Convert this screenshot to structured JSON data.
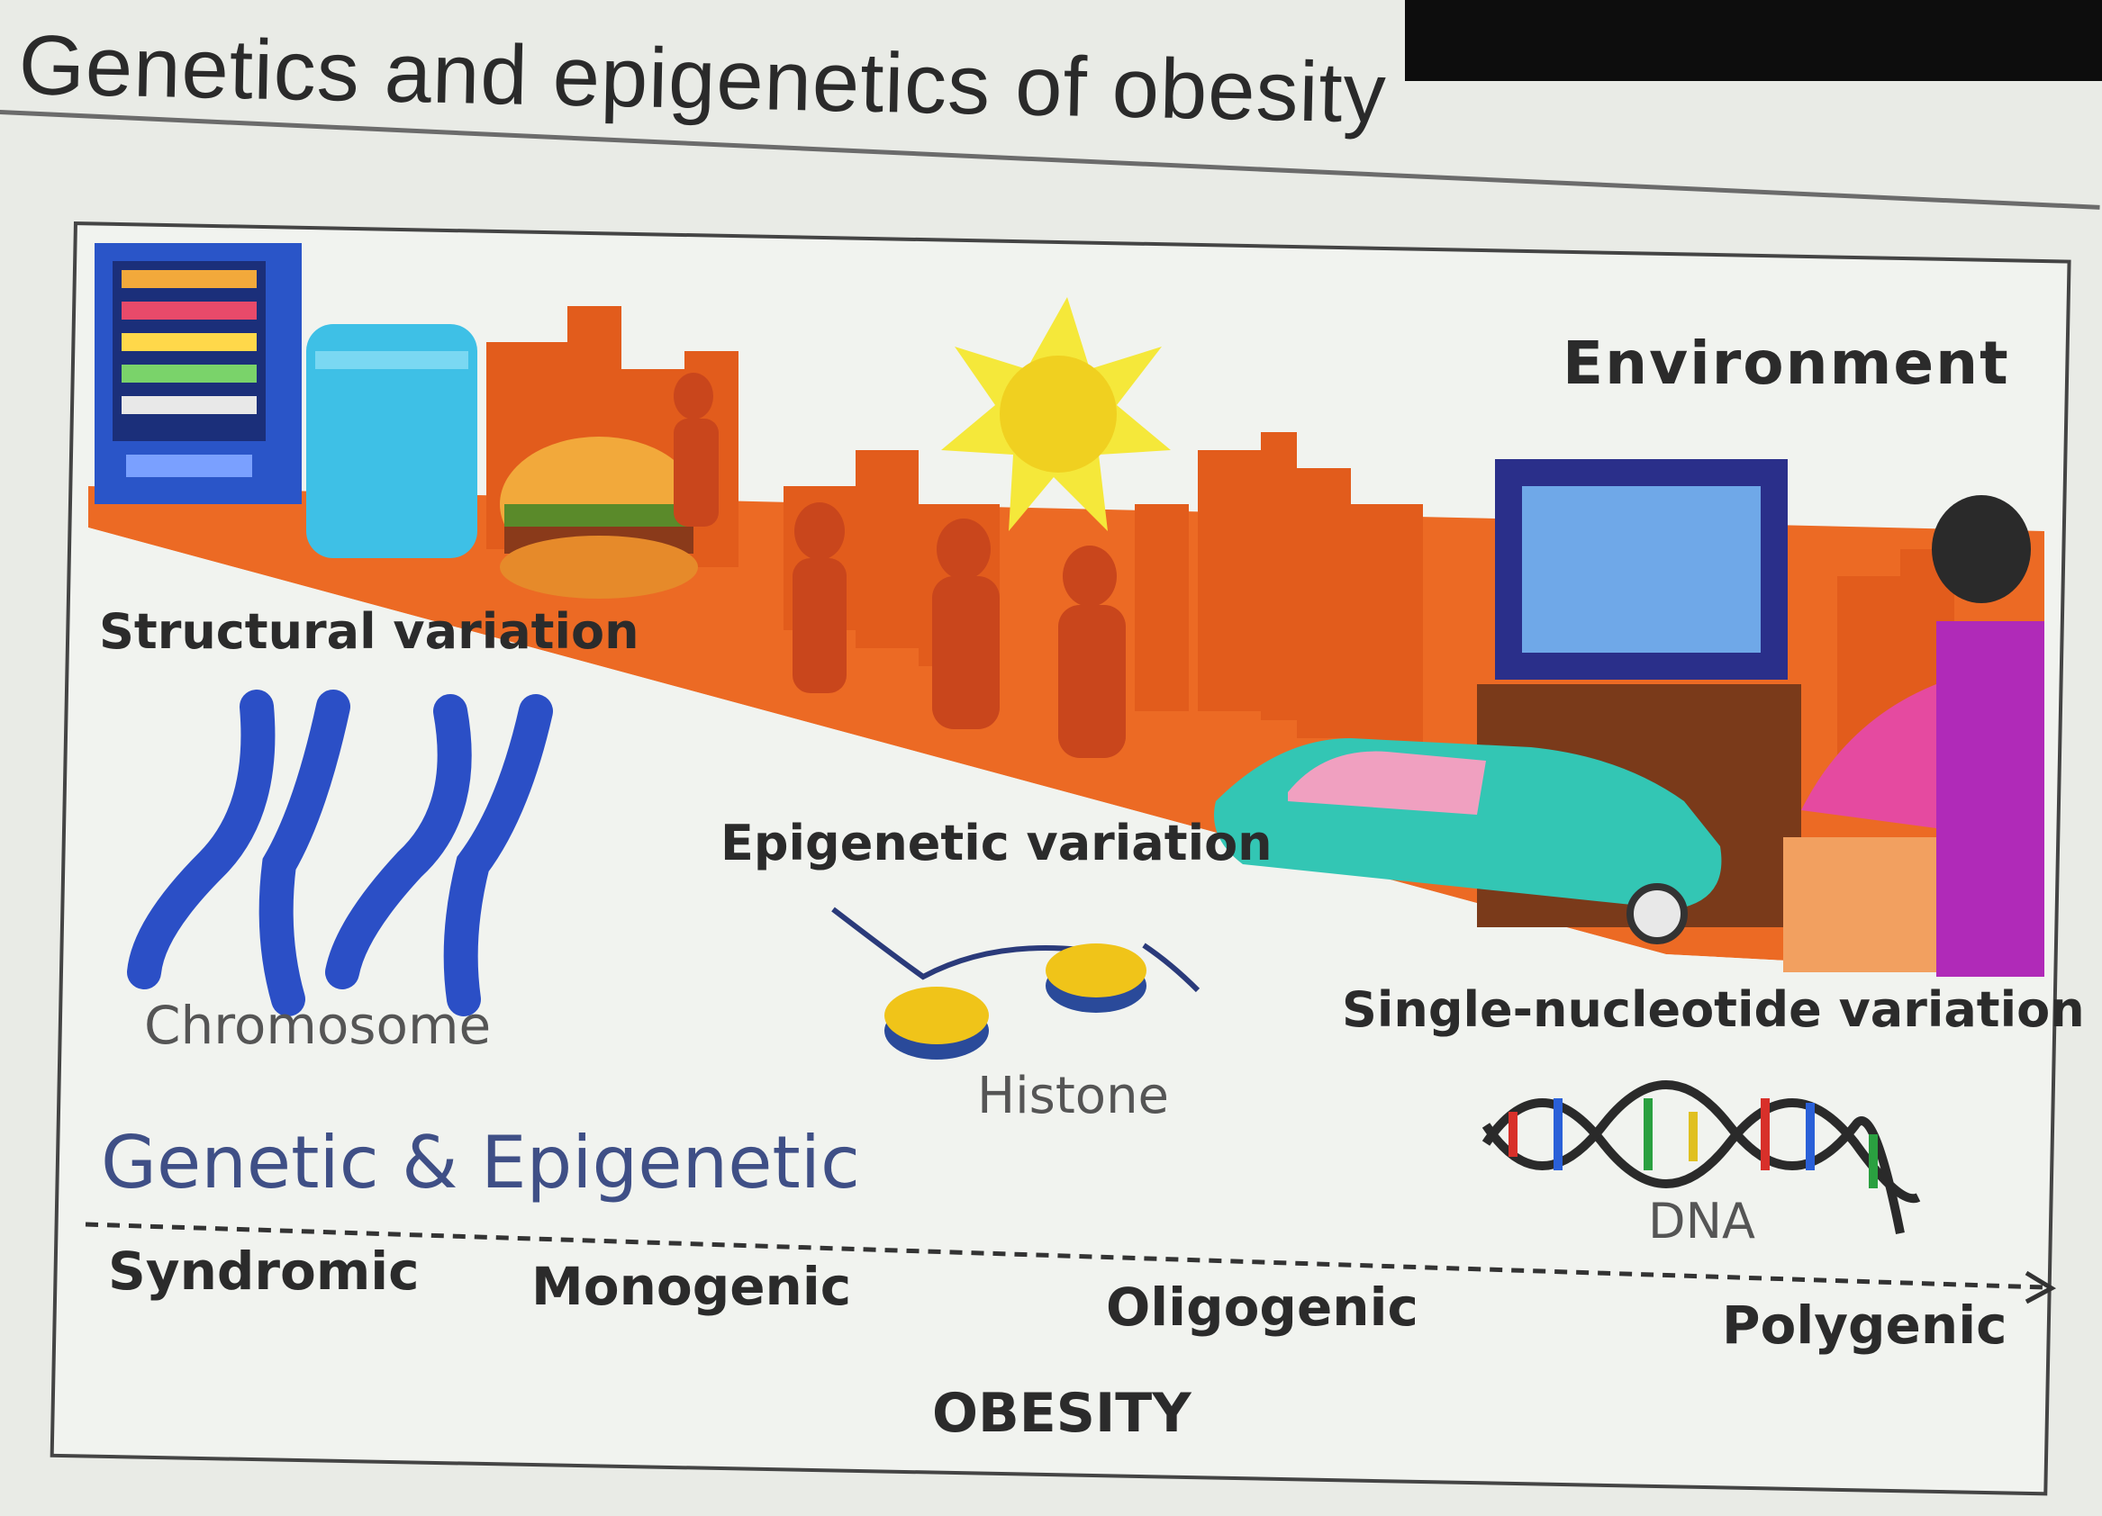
{
  "slide": {
    "title": "Genetics and epigenetics of obesity"
  },
  "diagram": {
    "environment_label": "Environment",
    "structural_label": "Structural variation",
    "chromosome_label": "Chromosome",
    "epigenetic_label": "Epigenetic variation",
    "histone_label": "Histone",
    "snv_label": "Single-nucleotide variation",
    "dna_label": "DNA",
    "genetic_epigenetic_label": "Genetic & Epigenetic",
    "spectrum": [
      "Syndromic",
      "Monogenic",
      "Oligogenic",
      "Polygenic"
    ],
    "outcome_label": "OBESITY"
  },
  "colors": {
    "city_orange": "#ec6a24",
    "chromosome_blue": "#2b4fc6",
    "histone_yellow": "#f0c419",
    "sun_yellow": "#f5e83a",
    "car_teal": "#33c6b4",
    "tv_blue": "#6fa8e8",
    "heading_blue": "#3f4f86"
  }
}
